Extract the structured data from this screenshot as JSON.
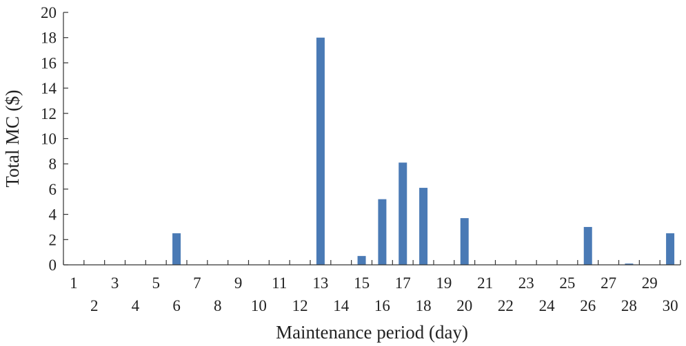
{
  "chart_data": {
    "type": "bar",
    "xlabel": "Maintenance period (day)",
    "ylabel": "Total MC ($)",
    "ylim": [
      0,
      20
    ],
    "yticks": [
      0,
      2,
      4,
      6,
      8,
      10,
      12,
      14,
      16,
      18,
      20
    ],
    "categories": [
      "1",
      "2",
      "3",
      "4",
      "5",
      "6",
      "7",
      "8",
      "9",
      "10",
      "11",
      "12",
      "13",
      "14",
      "15",
      "16",
      "17",
      "18",
      "19",
      "20",
      "21",
      "22",
      "23",
      "24",
      "25",
      "26",
      "27",
      "28",
      "29",
      "30"
    ],
    "values": [
      0,
      0,
      0,
      0,
      0,
      2.5,
      0,
      0,
      0,
      0,
      0,
      0,
      18,
      0,
      0.7,
      5.2,
      8.1,
      6.1,
      0,
      3.7,
      0,
      0,
      0,
      0,
      0,
      3.0,
      0,
      0.1,
      0,
      2.5
    ],
    "bar_color": "#4a7ab5",
    "grid": false,
    "legend": "none"
  }
}
